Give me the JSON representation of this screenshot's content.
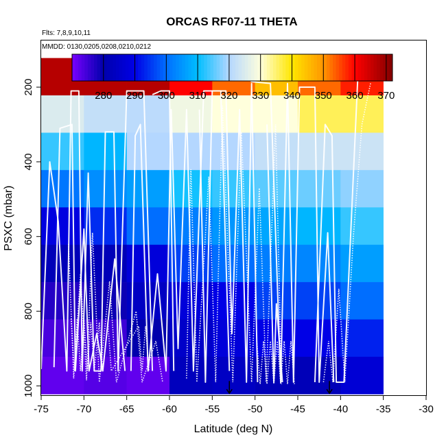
{
  "chart_data": {
    "type": "heatmap",
    "title": "ORCAS RF07-11 THETA",
    "subtitle_flights": "Flts: 7,8,9,10,11",
    "subtitle_dates": "MMDD: 0130,0205,0208,0210,0212",
    "xlabel": "Latitude (deg N)",
    "ylabel": "PSXC (mbar)",
    "xlim": [
      -75,
      -30
    ],
    "ylim": [
      1025,
      75
    ],
    "x_ticks": [
      -75,
      -70,
      -65,
      -60,
      -55,
      -50,
      -45,
      -40,
      -35,
      -30
    ],
    "y_ticks": [
      200,
      400,
      600,
      800,
      1000
    ],
    "colorbar": {
      "range": [
        270,
        372
      ],
      "ticks": [
        280,
        290,
        300,
        310,
        320,
        330,
        340,
        350,
        360,
        370
      ]
    },
    "x_bin_edges": [
      -75,
      -70,
      -65,
      -60,
      -55,
      -50,
      -45,
      -40,
      -35
    ],
    "y_bin_edges": [
      100,
      200,
      300,
      400,
      500,
      600,
      700,
      800,
      900,
      1000
    ],
    "theta_values_K": [
      [
        367,
        367,
        367,
        360,
        353,
        345,
        353,
        358
      ],
      [
        325,
        322,
        321,
        328,
        330,
        330,
        336,
        336
      ],
      [
        313,
        309,
        320,
        320,
        320,
        322,
        323,
        323
      ],
      [
        301,
        304,
        306,
        311,
        313,
        315,
        316,
        318
      ],
      [
        289,
        294,
        300,
        302,
        305,
        307,
        309,
        313
      ],
      [
        282,
        282,
        288,
        296,
        300,
        302,
        303,
        306
      ],
      [
        277,
        279,
        284,
        288,
        290,
        296,
        296,
        300
      ],
      [
        274,
        275,
        280,
        285,
        288,
        290,
        290,
        293
      ],
      [
        272,
        273,
        272,
        283,
        284,
        282,
        282,
        287
      ]
    ],
    "markers": [
      {
        "label": "down-arrow",
        "latitude": -53.0,
        "pressure": 1020
      },
      {
        "label": "down-arrow",
        "latitude": -41.3,
        "pressure": 1020
      }
    ]
  }
}
